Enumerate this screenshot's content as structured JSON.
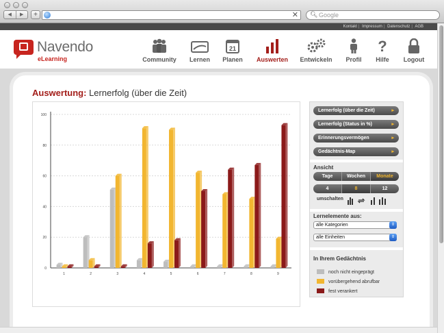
{
  "browser": {
    "nav_back": "◀",
    "nav_forward": "▶",
    "new_tab": "+",
    "url_clear": "✕",
    "search_placeholder": "Google"
  },
  "toplinks": [
    "Kontakt",
    "Impressum",
    "Datenschutz",
    "AGB"
  ],
  "brand": {
    "name": "Navendo",
    "sub": "eLearning",
    "color": "#c7251f"
  },
  "nav": [
    {
      "label": "Community",
      "icon": "community-icon"
    },
    {
      "label": "Lernen",
      "icon": "lernen-icon"
    },
    {
      "label": "Planen",
      "icon": "calendar-icon",
      "icon_text": "21"
    },
    {
      "label": "Auswerten",
      "icon": "bar-chart-icon",
      "active": true
    },
    {
      "label": "Entwickeln",
      "icon": "gears-icon"
    },
    {
      "label": "Profil",
      "icon": "person-icon"
    },
    {
      "label": "Hilfe",
      "icon": "question-icon"
    },
    {
      "label": "Logout",
      "icon": "lock-icon"
    }
  ],
  "page": {
    "title_bold": "Auswertung:",
    "title_rest": " Lernerfolg (über die Zeit)"
  },
  "sidebar": {
    "report_buttons": [
      {
        "label": "Lernerfolg (über die Zeit)",
        "active": true
      },
      {
        "label": "Lernerfolg (Status in %)"
      },
      {
        "label": "Erinnerungsvermögen"
      },
      {
        "label": "Gedächtnis-Map"
      }
    ],
    "view_label": "Ansicht",
    "units": [
      {
        "label": "Tage"
      },
      {
        "label": "Wochen"
      },
      {
        "label": "Monate",
        "active": true
      }
    ],
    "counts": [
      {
        "label": "4"
      },
      {
        "label": "8",
        "active": true
      },
      {
        "label": "12"
      }
    ],
    "toggle_label": "umschalten",
    "elements_label": "Lernelemente aus:",
    "category_select": "alle Kategorien",
    "unit_select": "alle Einheiten",
    "legend_title": "In Ihrem Gedächtnis",
    "legend": [
      {
        "label": "noch nicht eingeprägt",
        "color": "#bdbdbd"
      },
      {
        "label": "vorübergehend abrufbar",
        "color": "#f2b630"
      },
      {
        "label": "fest verankert",
        "color": "#8b1a1a"
      }
    ]
  },
  "chart_data": {
    "type": "bar",
    "categories": [
      "1",
      "2",
      "3",
      "4",
      "5",
      "6",
      "7",
      "8",
      "9"
    ],
    "ylim": [
      0,
      100
    ],
    "yticks": [
      "0",
      "20",
      "40",
      "60",
      "80",
      "100"
    ],
    "series": [
      {
        "name": "noch nicht eingeprägt",
        "color": "#bdbdbd",
        "values": [
          2,
          20,
          51,
          5,
          4,
          1,
          1,
          1,
          1
        ]
      },
      {
        "name": "vorübergehend abrufbar",
        "color": "#f2b630",
        "values": [
          1,
          5,
          60,
          91,
          90,
          62,
          48,
          45,
          19
        ]
      },
      {
        "name": "fest verankert",
        "color": "#8b1a1a",
        "values": [
          1,
          1,
          1,
          16,
          18,
          50,
          64,
          67,
          93
        ]
      }
    ],
    "grid": true
  }
}
